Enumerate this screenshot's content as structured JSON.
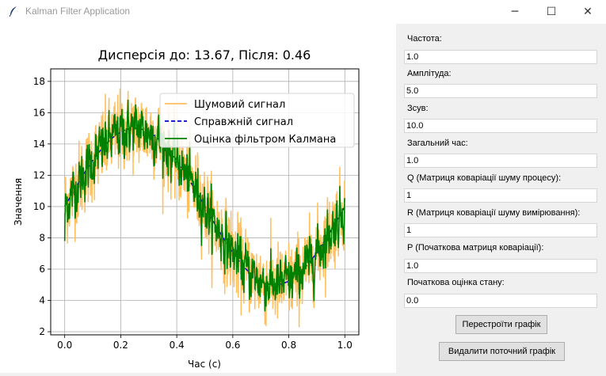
{
  "window": {
    "title": "Kalman Filter Application",
    "controls": {
      "minimize": "─",
      "maximize": "☐",
      "close": "✕"
    }
  },
  "form": {
    "fields": [
      {
        "label": "Частота:",
        "value": "1.0"
      },
      {
        "label": "Амплітуда:",
        "value": "5.0"
      },
      {
        "label": "Зсув:",
        "value": "10.0"
      },
      {
        "label": "Загальний час:",
        "value": "1.0"
      },
      {
        "label": "Q (Матриця коваріації шуму процесу):",
        "value": "1"
      },
      {
        "label": "R (Матриця коваріації шуму вимірювання):",
        "value": "1"
      },
      {
        "label": "P (Початкова матриця коваріації):",
        "value": "1.0"
      },
      {
        "label": "Початкова оцінка стану:",
        "value": "0.0"
      }
    ],
    "buttons": {
      "replot": "Перестроїти графік",
      "delete": "Видалити поточний графік"
    }
  },
  "chart_data": {
    "type": "line",
    "title": "Дисперсія до: 13.67, Після: 0.46",
    "xlabel": "Час (с)",
    "ylabel": "Значення",
    "xlim": [
      -0.05,
      1.05
    ],
    "ylim": [
      1.8,
      18.8
    ],
    "xticks": [
      "0.0",
      "0.2",
      "0.4",
      "0.6",
      "0.8",
      "1.0"
    ],
    "xtick_values": [
      0,
      0.2,
      0.4,
      0.6,
      0.8,
      1.0
    ],
    "yticks": [
      "2",
      "4",
      "6",
      "8",
      "10",
      "12",
      "14",
      "16",
      "18"
    ],
    "ytick_values": [
      2,
      4,
      6,
      8,
      10,
      12,
      14,
      16,
      18
    ],
    "grid": true,
    "legend_position": "top-right",
    "signal": {
      "frequency": 1.0,
      "amplitude": 5.0,
      "offset": 10.0,
      "duration": 1.0
    },
    "series": [
      {
        "name": "Шумовий сигнал",
        "color": "#ffbf5f",
        "style": "solid"
      },
      {
        "name": "Справжній сигнал",
        "color": "#0000cc",
        "style": "dashed"
      },
      {
        "name": "Оцінка фільтром Калмана",
        "color": "#008000",
        "style": "solid"
      }
    ]
  }
}
